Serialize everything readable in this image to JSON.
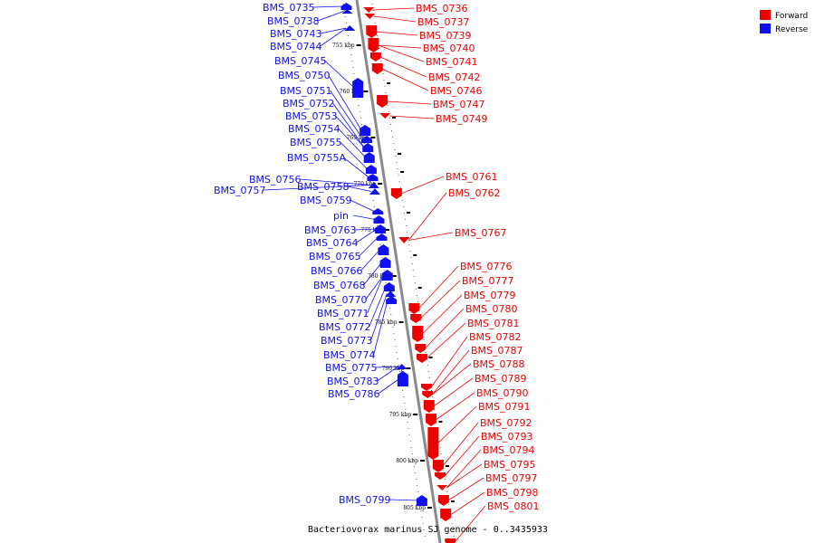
{
  "caption": "Bacteriovorax marinus SJ genome - 0..3435933",
  "colors": {
    "forward": "#ee0000",
    "reverse": "#1010ee",
    "axis": "#8a8a8a"
  },
  "legend": [
    {
      "key": "forward",
      "label": "Forward"
    },
    {
      "key": "reverse",
      "label": "Reverse"
    }
  ],
  "ticks": [
    "755 kbp",
    "760 kbp",
    "765 kbp",
    "770 kbp",
    "775 kbp",
    "780 kbp",
    "785 kbp",
    "790 kbp",
    "795 kbp",
    "800 kbp",
    "805 kbp"
  ],
  "reverse_genes": [
    "BMS_0735",
    "BMS_0738",
    "BMS_0743",
    "BMS_0744",
    "BMS_0745",
    "BMS_0750",
    "BMS_0751",
    "BMS_0752",
    "BMS_0753",
    "BMS_0754",
    "BMS_0755",
    "BMS_0755A",
    "BMS_0756",
    "BMS_0757",
    "BMS_0758",
    "BMS_0759",
    "pin",
    "BMS_0763",
    "BMS_0764",
    "BMS_0765",
    "BMS_0766",
    "BMS_0768",
    "BMS_0770",
    "BMS_0771",
    "BMS_0772",
    "BMS_0773",
    "BMS_0774",
    "BMS_0775",
    "BMS_0783",
    "BMS_0786",
    "BMS_0799"
  ],
  "forward_genes": [
    "BMS_0736",
    "BMS_0737",
    "BMS_0739",
    "BMS_0740",
    "BMS_0741",
    "BMS_0742",
    "BMS_0746",
    "BMS_0747",
    "BMS_0749",
    "BMS_0761",
    "BMS_0762",
    "BMS_0767",
    "BMS_0776",
    "BMS_0777",
    "BMS_0779",
    "BMS_0780",
    "BMS_0781",
    "BMS_0782",
    "BMS_0787",
    "BMS_0788",
    "BMS_0789",
    "BMS_0790",
    "BMS_0791",
    "BMS_0792",
    "BMS_0793",
    "BMS_0794",
    "BMS_0795",
    "BMS_0797",
    "BMS_0798",
    "BMS_0801"
  ]
}
